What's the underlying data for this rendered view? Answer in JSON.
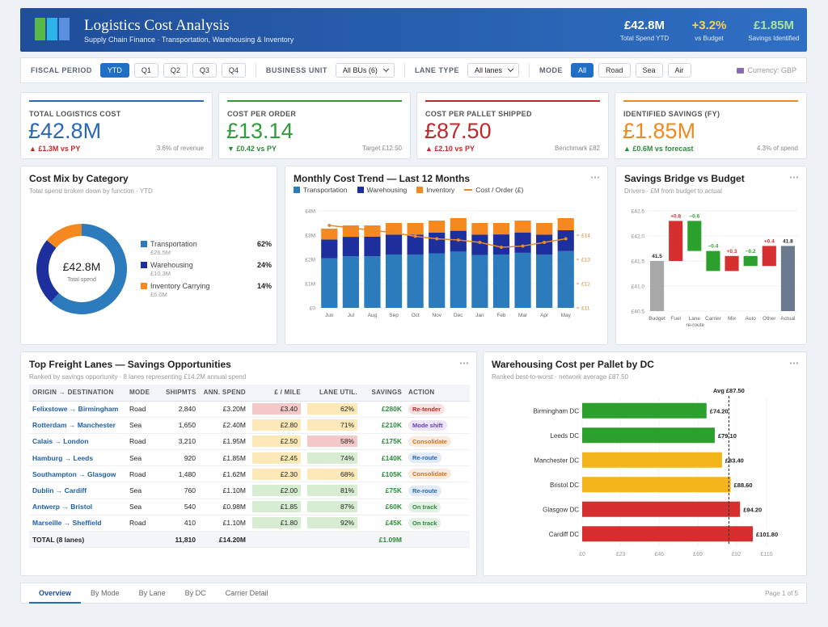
{
  "header": {
    "title": "Logistics Cost Analysis",
    "subtitle": "Supply Chain Finance · Transportation, Warehousing & Inventory",
    "stats": [
      {
        "value": "£42.8M",
        "label": "Total Spend YTD",
        "color": "#ffffff"
      },
      {
        "value": "+3.2%",
        "label": "vs Budget",
        "color": "#f5d548"
      },
      {
        "value": "£1.85M",
        "label": "Savings Identified",
        "color": "#a9e39d"
      }
    ]
  },
  "filters": {
    "groups": [
      {
        "label": "FISCAL PERIOD",
        "options": [
          "YTD",
          "Q1",
          "Q2",
          "Q3",
          "Q4"
        ],
        "active": 0
      },
      {
        "label": "BUSINESS UNIT",
        "select": "All BUs (6)"
      },
      {
        "label": "LANE TYPE",
        "select": "All lanes"
      },
      {
        "label": "MODE",
        "options": [
          "All",
          "Road",
          "Sea",
          "Air"
        ],
        "active": 0
      }
    ],
    "currency": "Currency: GBP"
  },
  "kpis": [
    {
      "title": "TOTAL LOGISTICS COST",
      "value": "£42.8M",
      "delta": "▲ £1.3M vs PY",
      "note": "3.6% of revenue",
      "color": "#2a67b8",
      "delta_color": "#c62828"
    },
    {
      "title": "COST PER ORDER",
      "value": "£13.14",
      "delta": "▼ £0.42 vs PY",
      "note": "Target £12.50",
      "color": "#2f9e3a",
      "delta_color": "#2e8b3a"
    },
    {
      "title": "COST PER PALLET SHIPPED",
      "value": "£87.50",
      "delta": "▲ £2.10 vs PY",
      "note": "Benchmark £82",
      "color": "#c0282d",
      "delta_color": "#c62828"
    },
    {
      "title": "IDENTIFIED SAVINGS (FY)",
      "value": "£1.85M",
      "delta": "▲ £0.6M vs forecast",
      "note": "4.3% of spend",
      "color": "#ee8a1e",
      "delta_color": "#2e8b3a"
    }
  ],
  "table": {
    "title": "Top Freight Lanes — Savings Opportunities",
    "subtitle": "Ranked by savings opportunity · 8 lanes representing £14.2M annual spend",
    "columns": [
      "ORIGIN → DESTINATION",
      "MODE",
      "SHIPMTS",
      "ANN. SPEND",
      "£ / MILE",
      "LANE UTIL.",
      "SAVINGS",
      "ACTION"
    ],
    "rows": [
      [
        "Felixstowe → Birmingham",
        "Road",
        "2,840",
        "£3.20M",
        "£3.40",
        "62%",
        "£280K",
        "Re-tender"
      ],
      [
        "Rotterdam → Manchester",
        "Sea",
        "1,650",
        "£2.40M",
        "£2.80",
        "71%",
        "£210K",
        "Mode shift"
      ],
      [
        "Calais → London",
        "Road",
        "3,210",
        "£1.95M",
        "£2.50",
        "58%",
        "£175K",
        "Consolidate"
      ],
      [
        "Hamburg → Leeds",
        "Sea",
        "920",
        "£1.85M",
        "£2.45",
        "74%",
        "£140K",
        "Re-route"
      ],
      [
        "Southampton → Glasgow",
        "Road",
        "1,480",
        "£1.62M",
        "£2.30",
        "68%",
        "£105K",
        "Consolidate"
      ],
      [
        "Dublin → Cardiff",
        "Sea",
        "760",
        "£1.10M",
        "£2.00",
        "81%",
        "£75K",
        "Re-route"
      ],
      [
        "Antwerp → Bristol",
        "Sea",
        "540",
        "£0.98M",
        "£1.85",
        "87%",
        "£60K",
        "On track"
      ],
      [
        "Marseille → Sheffield",
        "Road",
        "410",
        "£1.10M",
        "£1.80",
        "92%",
        "£45K",
        "On track"
      ]
    ],
    "action_colors": [
      "#c62828",
      "#6a3fb5",
      "#d9731a",
      "#2466c2",
      "#d9731a",
      "#2466c2",
      "#2e8b3a",
      "#2e8b3a"
    ],
    "total": {
      "label": "TOTAL (8 lanes)",
      "shipments": "11,810",
      "spend": "£14.20M",
      "savings": "£1.09M"
    }
  },
  "tabs": {
    "items": [
      "Overview",
      "By Mode",
      "By Lane",
      "By DC",
      "Carrier Detail"
    ],
    "active": 0,
    "page": "Page 1 of 5"
  },
  "chart_data": [
    {
      "type": "donut",
      "title": "Cost Mix by Category",
      "subtitle": "Total spend broken down by function · YTD",
      "center_value": "£42.8M",
      "center_label": "Total spend",
      "categories": [
        "Transportation",
        "Warehousing",
        "Inventory Carrying"
      ],
      "values": [
        62,
        24,
        14
      ],
      "value_labels": [
        "62%",
        "24%",
        "14%"
      ],
      "amounts": [
        "£26.5M",
        "£10.3M",
        "£6.0M"
      ],
      "colors": [
        "#2b7bbd",
        "#1c2f9c",
        "#f5891f"
      ]
    },
    {
      "type": "stacked-bar-line",
      "title": "Monthly Cost Trend — Last 12 Months",
      "categories": [
        "Jun",
        "Jul",
        "Aug",
        "Sep",
        "Oct",
        "Nov",
        "Dec",
        "Jan",
        "Feb",
        "Mar",
        "Apr",
        "May"
      ],
      "series": [
        {
          "name": "Transportation",
          "color": "#2b7bbd",
          "values": [
            2.04,
            2.13,
            2.13,
            2.2,
            2.19,
            2.25,
            2.32,
            2.18,
            2.2,
            2.27,
            2.19,
            2.34
          ]
        },
        {
          "name": "Warehousing",
          "color": "#1c2f9c",
          "values": [
            0.78,
            0.8,
            0.81,
            0.82,
            0.83,
            0.85,
            0.86,
            0.84,
            0.83,
            0.84,
            0.83,
            0.86
          ]
        },
        {
          "name": "Inventory",
          "color": "#f5891f",
          "values": [
            0.45,
            0.47,
            0.46,
            0.48,
            0.48,
            0.5,
            0.52,
            0.48,
            0.47,
            0.49,
            0.48,
            0.5
          ]
        },
        {
          "name": "Cost / Order (£)",
          "color": "#e8892c",
          "type": "line",
          "axis": "y2",
          "values": [
            14.4,
            14.3,
            14.2,
            14.1,
            13.95,
            13.85,
            13.8,
            13.7,
            13.5,
            13.55,
            13.7,
            13.85
          ]
        }
      ],
      "ylim": [
        0,
        4
      ],
      "yticks": [
        {
          "value": 0,
          "label": "£0"
        },
        {
          "value": 1,
          "label": "£1M"
        },
        {
          "value": 2,
          "label": "£2M"
        },
        {
          "value": 3,
          "label": "£3M"
        },
        {
          "value": 4,
          "label": "£4M"
        }
      ],
      "y2lim": [
        11,
        15
      ],
      "y2ticks": [
        {
          "value": 11,
          "label": "£11"
        },
        {
          "value": 12,
          "label": "£12"
        },
        {
          "value": 13,
          "label": "£13"
        },
        {
          "value": 14,
          "label": "£14"
        }
      ],
      "grid": true
    },
    {
      "type": "waterfall",
      "title": "Savings Bridge vs Budget",
      "subtitle": "Drivers · £M from budget to actual",
      "categories": [
        "Budget",
        "Fuel",
        "Lane re-route",
        "Carrier",
        "Mix",
        "Auto",
        "Other",
        "Actual"
      ],
      "values": [
        41.5,
        0.8,
        -0.6,
        -0.4,
        0.3,
        -0.2,
        0.4,
        41.8
      ],
      "value_labels": [
        "41.5",
        "+0.8",
        "−0.6",
        "−0.4",
        "+0.3",
        "−0.2",
        "+0.4",
        "41.8"
      ],
      "measure": [
        "absolute",
        "relative",
        "relative",
        "relative",
        "relative",
        "relative",
        "relative",
        "total"
      ],
      "colors": {
        "start": "#a8a8a8",
        "increase": "#d62f2f",
        "decrease": "#2ca02c",
        "total": "#6b7a8f"
      },
      "ylim": [
        40.5,
        42.5
      ],
      "yticks": [
        {
          "value": 40.5,
          "label": "£40.5"
        },
        {
          "value": 41,
          "label": "£41.0"
        },
        {
          "value": 41.5,
          "label": "£41.5"
        },
        {
          "value": 42,
          "label": "£42.0"
        },
        {
          "value": 42.5,
          "label": "£42.5"
        }
      ],
      "grid": true
    },
    {
      "type": "hbar",
      "title": "Warehousing Cost per Pallet by DC",
      "subtitle": "Ranked best-to-worst · network average £87.50",
      "categories": [
        "Birmingham DC",
        "Leeds DC",
        "Manchester DC",
        "Bristol DC",
        "Glasgow DC",
        "Cardiff DC"
      ],
      "values": [
        74.2,
        79.1,
        83.4,
        88.6,
        94.2,
        101.8
      ],
      "value_labels": [
        "£74.20",
        "£79.10",
        "£83.40",
        "£88.60",
        "£94.20",
        "£101.80"
      ],
      "colors": [
        "#2ca02c",
        "#2ca02c",
        "#f3b519",
        "#f3b519",
        "#d62f2f",
        "#d62f2f"
      ],
      "xlim": [
        0,
        110
      ],
      "xticks": [
        {
          "value": 0,
          "label": "£0"
        },
        {
          "value": 23,
          "label": "£23"
        },
        {
          "value": 46,
          "label": "£46"
        },
        {
          "value": 69,
          "label": "£69"
        },
        {
          "value": 92,
          "label": "£92"
        },
        {
          "value": 110,
          "label": "£110"
        }
      ],
      "reference": {
        "value": 87.5,
        "label": "Avg £87.50"
      }
    }
  ]
}
